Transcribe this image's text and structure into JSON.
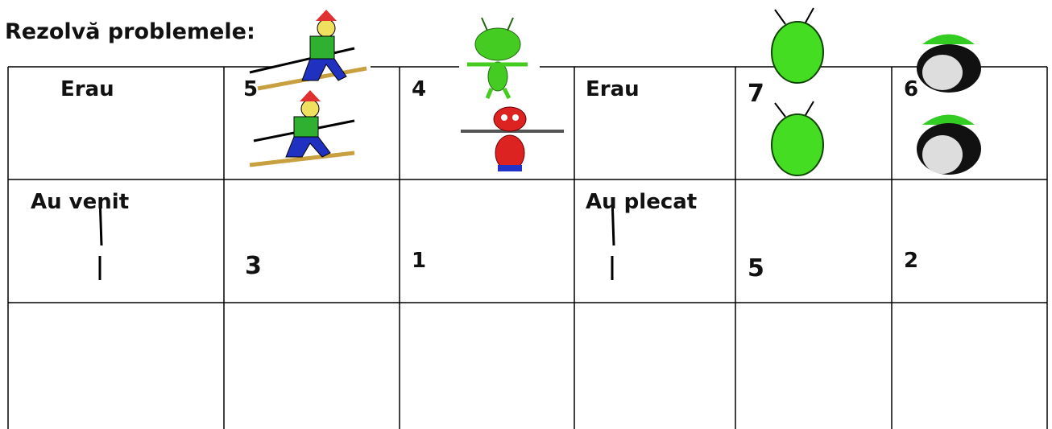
{
  "header": {
    "title": "Rezolvă problemele:"
  },
  "table": {
    "rows": [
      [
        "Erau",
        5,
        4,
        "Erau",
        7,
        6
      ],
      [
        "Au venit",
        3,
        1,
        "Au plecat",
        5,
        2
      ]
    ]
  }
}
